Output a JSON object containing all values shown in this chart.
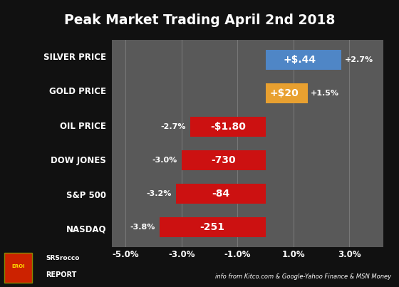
{
  "title": "Peak Market Trading April 2nd 2018",
  "categories": [
    "NASDAQ",
    "S&P 500",
    "DOW JONES",
    "OIL PRICE",
    "GOLD PRICE",
    "SILVER PRICE"
  ],
  "values": [
    -3.8,
    -3.2,
    -3.0,
    -2.7,
    1.5,
    2.7
  ],
  "colors": [
    "#cc1111",
    "#cc1111",
    "#cc1111",
    "#cc1111",
    "#e8a030",
    "#4f86c6"
  ],
  "bar_labels": [
    "-251",
    "-84",
    "-730",
    "-$1.80",
    "+$20",
    "+$.44"
  ],
  "pct_labels": [
    "-3.8%",
    "-3.2%",
    "-3.0%",
    "-2.7%",
    "+1.5%",
    "+2.7%"
  ],
  "xlim": [
    -5.5,
    4.2
  ],
  "xticks": [
    -5.0,
    -3.0,
    -1.0,
    1.0,
    3.0
  ],
  "xticklabels": [
    "-5.0%",
    "-3.0%",
    "-1.0%",
    "1.0%",
    "3.0%"
  ],
  "background_color": "#111111",
  "plot_bg_color": "#595959",
  "ylabel_bg_color": "#000000",
  "title_color": "#ffffff",
  "footer_text": "info from Kitco.com & Google-Yahoo Finance & MSN Money",
  "bar_height": 0.6
}
